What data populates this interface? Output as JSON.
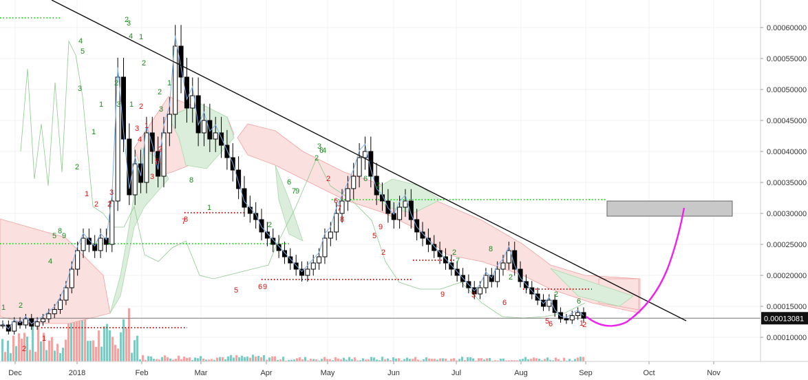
{
  "chart_data": {
    "type": "candlestick",
    "x_ticks": [
      "Dec",
      "2018",
      "Feb",
      "Mar",
      "Apr",
      "May",
      "Jun",
      "Jul",
      "Aug",
      "Sep",
      "Oct",
      "Nov"
    ],
    "y_ticks": [
      "0.00060000",
      "0.00055000",
      "0.00050000",
      "0.00045000",
      "0.00040000",
      "0.00035000",
      "0.00030000",
      "0.00025000",
      "0.00020000",
      "0.00015000",
      "0.00010000"
    ],
    "y_tick_values": [
      0.0006,
      0.00055,
      0.0005,
      0.00045,
      0.0004,
      0.00035,
      0.0003,
      0.00025,
      0.0002,
      0.00015,
      0.0001
    ],
    "ylim": [
      6.73e-05,
      0.0006475
    ],
    "last_price": 0.00013081,
    "last_price_label": "0.00013081",
    "colors": {
      "candle": "#000000",
      "cloud_bull": "#dbeedb",
      "cloud_bear": "#fbe0e0",
      "td_up": "#1a8a1a",
      "td_down": "#dd1111",
      "projection": "#ee22ee",
      "target_box": "#c8c8c8",
      "volume_up": "#7fcac0",
      "volume_down": "#f4a3a3",
      "support": "#dd1111",
      "resistance": "#22dd22"
    },
    "close_series": [
      0.00012,
      0.00011,
      0.000125,
      0.00012,
      0.00013,
      0.000118,
      0.000125,
      0.00013,
      0.000138,
      0.000145,
      0.00016,
      0.00018,
      0.00021,
      0.00024,
      0.00026,
      0.00025,
      0.00024,
      0.00026,
      0.00025,
      0.00032,
      0.00052,
      0.00042,
      0.00033,
      0.00038,
      0.00035,
      0.00043,
      0.0004,
      0.00036,
      0.00043,
      0.00046,
      0.00057,
      0.00052,
      0.00047,
      0.00049,
      0.00043,
      0.00045,
      0.00042,
      0.00043,
      0.00041,
      0.00039,
      0.00037,
      0.00034,
      0.00031,
      0.0003,
      0.00029,
      0.00027,
      0.00026,
      0.00025,
      0.00024,
      0.00023,
      0.00022,
      0.00021,
      0.0002,
      0.00021,
      0.00022,
      0.00023,
      0.00026,
      0.00027,
      0.0003,
      0.00032,
      0.00034,
      0.00036,
      0.00039,
      0.0004,
      0.00036,
      0.00033,
      0.00032,
      0.0003,
      0.00029,
      0.00031,
      0.00032,
      0.00029,
      0.00027,
      0.00026,
      0.00025,
      0.00024,
      0.00023,
      0.00022,
      0.00021,
      0.0002,
      0.00019,
      0.00018,
      0.00017,
      0.00018,
      0.0002,
      0.00019,
      0.00021,
      0.00022,
      0.00024,
      0.00021,
      0.00019,
      0.00018,
      0.00017,
      0.00016,
      0.00015,
      0.00016,
      0.00014,
      0.00013,
      0.000128,
      0.000135,
      0.00014,
      0.00013081
    ],
    "td_labels": [
      {
        "t": "2",
        "c": "up",
        "x": 184,
        "y": 32
      },
      {
        "t": "3",
        "c": "up",
        "x": 187,
        "y": 37
      },
      {
        "t": "4",
        "c": "up",
        "x": 190,
        "y": 56
      },
      {
        "t": "1",
        "c": "up",
        "x": 205,
        "y": 57
      },
      {
        "t": "4",
        "c": "up",
        "x": 117,
        "y": 63
      },
      {
        "t": "5",
        "c": "up",
        "x": 120,
        "y": 78
      },
      {
        "t": "2",
        "c": "up",
        "x": 209,
        "y": 95
      },
      {
        "t": "1",
        "c": "up",
        "x": 246,
        "y": 124
      },
      {
        "t": "2",
        "c": "up",
        "x": 169,
        "y": 124
      },
      {
        "t": "2",
        "c": "up",
        "x": 232,
        "y": 137
      },
      {
        "t": "3",
        "c": "up",
        "x": 116,
        "y": 132
      },
      {
        "t": "1",
        "c": "up",
        "x": 147,
        "y": 155
      },
      {
        "t": "3",
        "c": "up",
        "x": 172,
        "y": 155
      },
      {
        "t": "1",
        "c": "up",
        "x": 191,
        "y": 155
      },
      {
        "t": "3",
        "c": "up",
        "x": 234,
        "y": 162
      },
      {
        "t": "1",
        "c": "up",
        "x": 136,
        "y": 195
      },
      {
        "t": "3",
        "c": "red",
        "x": 199,
        "y": 190
      },
      {
        "t": "2",
        "c": "red",
        "x": 205,
        "y": 158
      },
      {
        "t": "4",
        "c": "red",
        "x": 203,
        "y": 206
      },
      {
        "t": "1",
        "c": "red",
        "x": 213,
        "y": 186
      },
      {
        "t": "2",
        "c": "red",
        "x": 233,
        "y": 220
      },
      {
        "t": "5",
        "c": "red",
        "x": 228,
        "y": 238
      },
      {
        "t": "3",
        "c": "red",
        "x": 221,
        "y": 260
      },
      {
        "t": "3",
        "c": "red",
        "x": 162,
        "y": 283
      },
      {
        "t": "1",
        "c": "red",
        "x": 126,
        "y": 285
      },
      {
        "t": "2",
        "c": "red",
        "x": 140,
        "y": 300
      },
      {
        "t": "2",
        "c": "red",
        "x": 159,
        "y": 300
      },
      {
        "t": "2",
        "c": "up",
        "x": 112,
        "y": 246
      },
      {
        "t": "4",
        "c": "up",
        "x": 471,
        "y": 222
      },
      {
        "t": "6",
        "c": "up",
        "x": 467,
        "y": 222
      },
      {
        "t": "3",
        "c": "up",
        "x": 464,
        "y": 216
      },
      {
        "t": "2",
        "c": "up",
        "x": 460,
        "y": 233
      },
      {
        "t": "6",
        "c": "up",
        "x": 420,
        "y": 268
      },
      {
        "t": "7",
        "c": "up",
        "x": 427,
        "y": 281
      },
      {
        "t": "9",
        "c": "up",
        "x": 432,
        "y": 281
      },
      {
        "t": "6",
        "c": "up",
        "x": 531,
        "y": 263
      },
      {
        "t": "7",
        "c": "up",
        "x": 549,
        "y": 273
      },
      {
        "t": "2",
        "c": "red",
        "x": 477,
        "y": 263
      },
      {
        "t": "6",
        "c": "red",
        "x": 488,
        "y": 295
      },
      {
        "t": "7",
        "c": "red",
        "x": 493,
        "y": 306
      },
      {
        "t": "8",
        "c": "red",
        "x": 497,
        "y": 322
      },
      {
        "t": "9",
        "c": "red",
        "x": 553,
        "y": 333
      },
      {
        "t": "5",
        "c": "red",
        "x": 544,
        "y": 346
      },
      {
        "t": "2",
        "c": "red",
        "x": 557,
        "y": 370
      },
      {
        "t": "8",
        "c": "up",
        "x": 278,
        "y": 265
      },
      {
        "t": "1",
        "c": "up",
        "x": 304,
        "y": 305
      },
      {
        "t": "7",
        "c": "red",
        "x": 267,
        "y": 325
      },
      {
        "t": "8",
        "c": "red",
        "x": 270,
        "y": 322
      },
      {
        "t": "5",
        "c": "red",
        "x": 343,
        "y": 425
      },
      {
        "t": "6",
        "c": "red",
        "x": 378,
        "y": 420
      },
      {
        "t": "9",
        "c": "red",
        "x": 385,
        "y": 420
      },
      {
        "t": "2",
        "c": "up",
        "x": 392,
        "y": 330
      },
      {
        "t": "2",
        "c": "up",
        "x": 660,
        "y": 370
      },
      {
        "t": "7",
        "c": "up",
        "x": 665,
        "y": 382
      },
      {
        "t": "8",
        "c": "up",
        "x": 713,
        "y": 365
      },
      {
        "t": "2",
        "c": "up",
        "x": 742,
        "y": 406
      },
      {
        "t": "9",
        "c": "red",
        "x": 643,
        "y": 431
      },
      {
        "t": "3",
        "c": "red",
        "x": 688,
        "y": 432
      },
      {
        "t": "6",
        "c": "red",
        "x": 733,
        "y": 443
      },
      {
        "t": "5",
        "c": "red",
        "x": 795,
        "y": 470
      },
      {
        "t": "6",
        "c": "red",
        "x": 800,
        "y": 474
      },
      {
        "t": "2",
        "c": "up",
        "x": 808,
        "y": 431
      },
      {
        "t": "6",
        "c": "up",
        "x": 841,
        "y": 441
      },
      {
        "t": "1",
        "c": "red",
        "x": 845,
        "y": 473
      },
      {
        "t": "2",
        "c": "red",
        "x": 849,
        "y": 475
      },
      {
        "t": "1",
        "c": "up",
        "x": 5,
        "y": 450
      },
      {
        "t": "2",
        "c": "up",
        "x": 30,
        "y": 447
      },
      {
        "t": "4",
        "c": "up",
        "x": 73,
        "y": 383
      },
      {
        "t": "5",
        "c": "up",
        "x": 79,
        "y": 346
      },
      {
        "t": "8",
        "c": "up",
        "x": 87,
        "y": 339
      },
      {
        "t": "9",
        "c": "up",
        "x": 93,
        "y": 346
      },
      {
        "t": "1",
        "c": "red",
        "x": 64,
        "y": 495
      },
      {
        "t": "2",
        "c": "red",
        "x": 35,
        "y": 510
      }
    ]
  }
}
